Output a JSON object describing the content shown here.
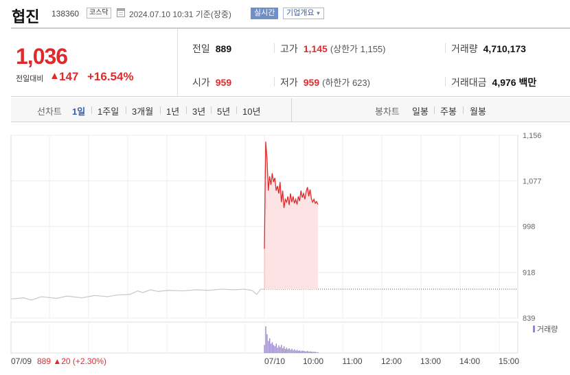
{
  "header": {
    "stock_name": "협진",
    "stock_code": "138360",
    "market": "코스닥",
    "timestamp": "2024.07.10 10:31 기준(장중)",
    "realtime_label": "실시간",
    "company_button_label": "기업개요"
  },
  "quote": {
    "price": "1,036",
    "change_label": "전일대비",
    "change_arrow": "▲",
    "change_amount": "147",
    "change_percent": "+16.54%",
    "prev_close": {
      "label": "전일",
      "value": "889"
    },
    "open": {
      "label": "시가",
      "value": "959"
    },
    "high": {
      "label": "고가",
      "value": "1,145",
      "note": "(상한가 1,155)"
    },
    "low": {
      "label": "저가",
      "value": "959",
      "note": "(하한가 623)"
    },
    "volume": {
      "label": "거래량",
      "value": "4,710,173"
    },
    "turnover": {
      "label": "거래대금",
      "value": "4,976 백만"
    }
  },
  "tabs": {
    "line_label": "선차트",
    "line_tabs": [
      "1일",
      "1주일",
      "3개월",
      "1년",
      "3년",
      "5년",
      "10년"
    ],
    "active_index": 0,
    "candle_label": "봉차트",
    "candle_tabs": [
      "일봉",
      "주봉",
      "월봉"
    ]
  },
  "colors": {
    "up": "#e0292b",
    "up_fill": "#fde3e3",
    "prev_line": "#c8c8c8",
    "volume": "#9a87c9",
    "accent": "#2b5fbd"
  },
  "chart_data": {
    "type": "line",
    "y_ticks": [
      1156,
      1077,
      998,
      918,
      839
    ],
    "y_tick_labels": [
      "1,156",
      "1,077",
      "998",
      "918",
      "839"
    ],
    "ylim": [
      839,
      1156
    ],
    "prev_close": 889,
    "x_tick_labels": [
      "07/09",
      "07/10",
      "10:00",
      "11:00",
      "12:00",
      "13:00",
      "14:00",
      "15:00"
    ],
    "prev_day_note": {
      "date": "07/09",
      "price": "889",
      "arrow": "▲",
      "change": "20",
      "pct": "(+2.30%)"
    },
    "volume_legend": "거래량",
    "prev_day_series": [
      {
        "t": 0.0,
        "v": 872
      },
      {
        "t": 0.05,
        "v": 874
      },
      {
        "t": 0.08,
        "v": 870
      },
      {
        "t": 0.12,
        "v": 876
      },
      {
        "t": 0.18,
        "v": 873
      },
      {
        "t": 0.22,
        "v": 877
      },
      {
        "t": 0.28,
        "v": 874
      },
      {
        "t": 0.33,
        "v": 878
      },
      {
        "t": 0.38,
        "v": 876
      },
      {
        "t": 0.42,
        "v": 879
      },
      {
        "t": 0.47,
        "v": 880
      },
      {
        "t": 0.5,
        "v": 886
      },
      {
        "t": 0.52,
        "v": 883
      },
      {
        "t": 0.55,
        "v": 888
      },
      {
        "t": 0.58,
        "v": 885
      },
      {
        "t": 0.62,
        "v": 887
      },
      {
        "t": 0.68,
        "v": 886
      },
      {
        "t": 0.73,
        "v": 888
      },
      {
        "t": 0.78,
        "v": 887
      },
      {
        "t": 0.83,
        "v": 889
      },
      {
        "t": 0.88,
        "v": 888
      },
      {
        "t": 0.92,
        "v": 889
      },
      {
        "t": 0.95,
        "v": 887
      },
      {
        "t": 0.97,
        "v": 880
      },
      {
        "t": 0.985,
        "v": 889
      },
      {
        "t": 1.0,
        "v": 889
      }
    ],
    "today_series": [
      {
        "m": 0,
        "v": 959
      },
      {
        "m": 1,
        "v": 1145
      },
      {
        "m": 2,
        "v": 1115
      },
      {
        "m": 3,
        "v": 1060
      },
      {
        "m": 4,
        "v": 1085
      },
      {
        "m": 5,
        "v": 1070
      },
      {
        "m": 6,
        "v": 1090
      },
      {
        "m": 7,
        "v": 1075
      },
      {
        "m": 8,
        "v": 1082
      },
      {
        "m": 9,
        "v": 1060
      },
      {
        "m": 10,
        "v": 1068
      },
      {
        "m": 11,
        "v": 1055
      },
      {
        "m": 12,
        "v": 1075
      },
      {
        "m": 13,
        "v": 1040
      },
      {
        "m": 14,
        "v": 1060
      },
      {
        "m": 15,
        "v": 1030
      },
      {
        "m": 16,
        "v": 1045
      },
      {
        "m": 17,
        "v": 1040
      },
      {
        "m": 18,
        "v": 1050
      },
      {
        "m": 19,
        "v": 1035
      },
      {
        "m": 20,
        "v": 1055
      },
      {
        "m": 21,
        "v": 1040
      },
      {
        "m": 22,
        "v": 1050
      },
      {
        "m": 23,
        "v": 1038
      },
      {
        "m": 24,
        "v": 1045
      },
      {
        "m": 25,
        "v": 1036
      },
      {
        "m": 26,
        "v": 1050
      },
      {
        "m": 27,
        "v": 1042
      },
      {
        "m": 28,
        "v": 1060
      },
      {
        "m": 29,
        "v": 1048
      },
      {
        "m": 30,
        "v": 1055
      },
      {
        "m": 31,
        "v": 1045
      },
      {
        "m": 32,
        "v": 1058
      },
      {
        "m": 33,
        "v": 1066
      },
      {
        "m": 34,
        "v": 1050
      },
      {
        "m": 35,
        "v": 1062
      },
      {
        "m": 36,
        "v": 1046
      },
      {
        "m": 37,
        "v": 1040
      },
      {
        "m": 38,
        "v": 1045
      },
      {
        "m": 39,
        "v": 1038
      },
      {
        "m": 40,
        "v": 1041
      },
      {
        "m": 41,
        "v": 1036
      }
    ],
    "today_volume": [
      30,
      100,
      70,
      45,
      55,
      35,
      40,
      30,
      25,
      35,
      20,
      28,
      22,
      30,
      18,
      25,
      15,
      20,
      14,
      18,
      12,
      16,
      10,
      14,
      9,
      12,
      8,
      10,
      7,
      9,
      8,
      7,
      6,
      8,
      5,
      6,
      5,
      4,
      5,
      4,
      3,
      3
    ]
  }
}
